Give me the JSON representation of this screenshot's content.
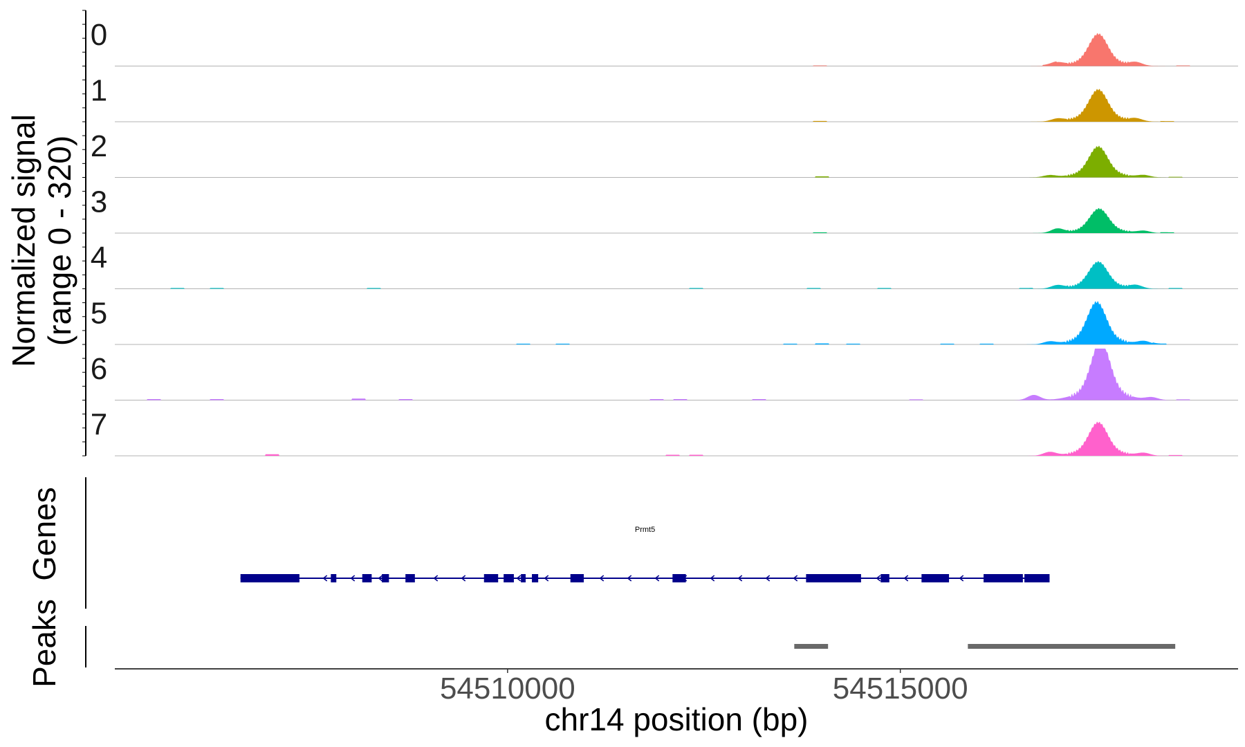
{
  "chart_data": {
    "type": "area",
    "chromosome": "chr14",
    "x_range": [
      54505000,
      54519300
    ],
    "x_ticks": [
      54510000,
      54515000
    ],
    "x_tick_labels": [
      "54510000",
      "54515000"
    ],
    "xlabel": "chr14 position (bp)",
    "ylabel_line1": "Normalized signal",
    "ylabel_line2": "(range 0 - 320)",
    "ylim": [
      0,
      320
    ],
    "panel_labels": {
      "genes": "Genes",
      "peaks": "Peaks"
    },
    "tracks": [
      {
        "name": "0",
        "color": "#F8766D",
        "peak_center": 54517520,
        "peak_height": 0.5,
        "shoulders": [
          [
            54517000,
            0.06
          ],
          [
            54518000,
            0.06
          ]
        ],
        "background": [
          [
            54513980,
            0.012
          ],
          [
            54516900,
            0.015
          ],
          [
            54518600,
            0.012
          ]
        ]
      },
      {
        "name": "1",
        "color": "#CD9600",
        "peak_center": 54517520,
        "peak_height": 0.5,
        "shoulders": [
          [
            54517000,
            0.05
          ],
          [
            54518000,
            0.05
          ]
        ],
        "background": [
          [
            54513980,
            0.015
          ],
          [
            54518400,
            0.012
          ]
        ]
      },
      {
        "name": "2",
        "color": "#7CAE00",
        "peak_center": 54517520,
        "peak_height": 0.48,
        "shoulders": [
          [
            54516900,
            0.04
          ],
          [
            54518100,
            0.04
          ]
        ],
        "background": [
          [
            54514000,
            0.02
          ],
          [
            54518500,
            0.012
          ]
        ]
      },
      {
        "name": "3",
        "color": "#00BE67",
        "peak_center": 54517530,
        "peak_height": 0.38,
        "shoulders": [
          [
            54517000,
            0.08
          ],
          [
            54518100,
            0.04
          ]
        ],
        "background": [
          [
            54513980,
            0.015
          ],
          [
            54518400,
            0.015
          ]
        ]
      },
      {
        "name": "4",
        "color": "#00BFC4",
        "peak_center": 54517520,
        "peak_height": 0.42,
        "shoulders": [
          [
            54517000,
            0.06
          ],
          [
            54518000,
            0.06
          ]
        ],
        "background": [
          [
            54505800,
            0.015
          ],
          [
            54506300,
            0.015
          ],
          [
            54508300,
            0.015
          ],
          [
            54512400,
            0.015
          ],
          [
            54513900,
            0.015
          ],
          [
            54514800,
            0.015
          ],
          [
            54516600,
            0.015
          ],
          [
            54518500,
            0.015
          ]
        ]
      },
      {
        "name": "5",
        "color": "#00A9FF",
        "peak_center": 54517500,
        "peak_height": 0.66,
        "shoulders": [
          [
            54516900,
            0.05
          ],
          [
            54518100,
            0.06
          ]
        ],
        "background": [
          [
            54510200,
            0.015
          ],
          [
            54510700,
            0.015
          ],
          [
            54513600,
            0.015
          ],
          [
            54514000,
            0.02
          ],
          [
            54514400,
            0.015
          ],
          [
            54515600,
            0.015
          ],
          [
            54516100,
            0.015
          ],
          [
            54518300,
            0.015
          ]
        ]
      },
      {
        "name": "6",
        "color": "#C77CFF",
        "peak_center": 54517550,
        "peak_height": 0.92,
        "shoulders": [
          [
            54516700,
            0.1
          ],
          [
            54518200,
            0.05
          ]
        ],
        "background": [
          [
            54505500,
            0.02
          ],
          [
            54506300,
            0.02
          ],
          [
            54508100,
            0.03
          ],
          [
            54508700,
            0.02
          ],
          [
            54511900,
            0.02
          ],
          [
            54512200,
            0.02
          ],
          [
            54513200,
            0.02
          ],
          [
            54515200,
            0.015
          ],
          [
            54518600,
            0.015
          ]
        ]
      },
      {
        "name": "7",
        "color": "#FF61CC",
        "peak_center": 54517520,
        "peak_height": 0.52,
        "shoulders": [
          [
            54516900,
            0.07
          ],
          [
            54518100,
            0.05
          ]
        ],
        "background": [
          [
            54507000,
            0.03
          ],
          [
            54512100,
            0.02
          ],
          [
            54512400,
            0.02
          ],
          [
            54518500,
            0.015
          ]
        ]
      }
    ],
    "genes": [
      {
        "name": "Prmt5",
        "strand": "-",
        "start": 54506600,
        "end": 54516900,
        "color": "#00008B",
        "exons": [
          [
            54506600,
            54507350
          ],
          [
            54507750,
            54507820
          ],
          [
            54508150,
            54508270
          ],
          [
            54508400,
            54508490
          ],
          [
            54508700,
            54508820
          ],
          [
            54509700,
            54509880
          ],
          [
            54509950,
            54510080
          ],
          [
            54510170,
            54510230
          ],
          [
            54510310,
            54510390
          ],
          [
            54510800,
            54510970
          ],
          [
            54512100,
            54512270
          ],
          [
            54513800,
            54514500
          ],
          [
            54514750,
            54514860
          ],
          [
            54515270,
            54515620
          ],
          [
            54516060,
            54516560
          ],
          [
            54516580,
            54516600
          ],
          [
            54516590,
            54516900
          ]
        ]
      }
    ],
    "peaks": [
      [
        54513650,
        54514080
      ],
      [
        54515860,
        54518500
      ]
    ],
    "peak_color": "#696969"
  }
}
